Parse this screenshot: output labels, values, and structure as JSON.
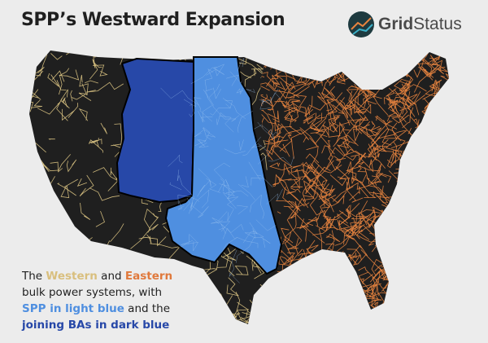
{
  "title": "SPP’s Westward Expansion",
  "logo": {
    "text_bold": "Grid",
    "text_regular": "Status",
    "icon": "grid-status-globe-icon"
  },
  "caption": {
    "p1": "The ",
    "western": "Western",
    "p2": " and ",
    "eastern": "Eastern",
    "p3": " bulk power systems, with ",
    "spp": "SPP in light blue",
    "p4": " and the ",
    "joining": "joining BAs in dark blue"
  },
  "colors": {
    "background": "#ececec",
    "land": "#1f1f1f",
    "western": "#e8cf8a",
    "eastern": "#e8843f",
    "spp_light_blue": "#4f8fe0",
    "joining_dark_blue": "#2748a8"
  },
  "legend": [
    {
      "label": "Western",
      "color": "#e8cf8a"
    },
    {
      "label": "Eastern",
      "color": "#e8843f"
    },
    {
      "label": "SPP",
      "color": "#4f8fe0"
    },
    {
      "label": "joining BAs",
      "color": "#2748a8"
    }
  ]
}
